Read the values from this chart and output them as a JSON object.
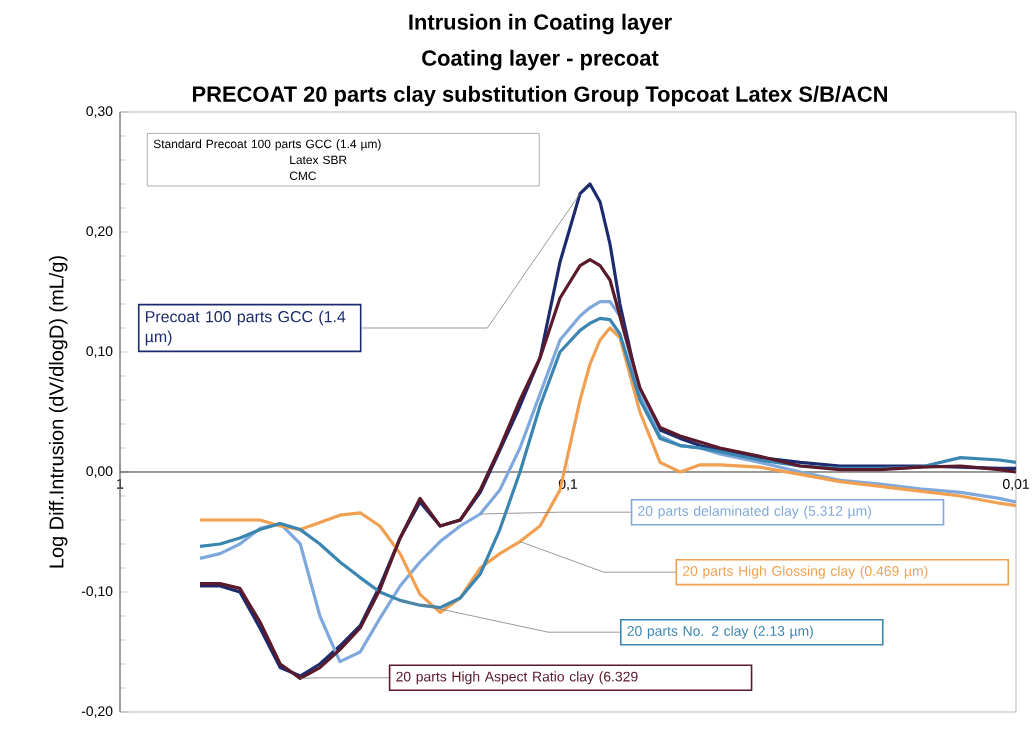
{
  "chart_data": {
    "type": "line",
    "title": "Intrusion in Coating layer",
    "subtitle": "Coating layer - precoat",
    "ylabel": "Log Diff.Intrusion (dV/dlogD) (mL/g)",
    "annotations": [
      "PRECOAT 20 parts clay substitution Group   Topcoat Latex S/B/ACN",
      "Standard Precoat  100 parts GCC (1.4 µm)",
      "Latex SBR",
      "CMC"
    ],
    "log": "x",
    "xlim": [
      1,
      0.01
    ],
    "xticks": [
      {
        "value": 1,
        "label": "1"
      },
      {
        "value": 0.1,
        "label": "0,1"
      },
      {
        "value": 0.01,
        "label": "0,01"
      }
    ],
    "ylim": [
      -0.2,
      0.3
    ],
    "yticks": [
      {
        "value": -0.2,
        "label": "-0,20"
      },
      {
        "value": -0.1,
        "label": "-0,10"
      },
      {
        "value": 0,
        "label": "0,00"
      },
      {
        "value": 0.1,
        "label": "0,10"
      },
      {
        "value": 0.2,
        "label": "0,20"
      },
      {
        "value": 0.3,
        "label": "0,30"
      }
    ],
    "x": [
      0.663,
      0.598,
      0.54,
      0.487,
      0.439,
      0.396,
      0.358,
      0.323,
      0.291,
      0.263,
      0.237,
      0.214,
      0.193,
      0.174,
      0.157,
      0.142,
      0.128,
      0.1155,
      0.1042,
      0.094,
      0.0893,
      0.0848,
      0.0806,
      0.0766,
      0.0691,
      0.0623,
      0.0562,
      0.0507,
      0.0458,
      0.0373,
      0.0303,
      0.0247,
      0.0201,
      0.0164,
      0.0133,
      0.0109,
      0.01
    ],
    "series": [
      {
        "name": "Precoat 100 parts GCC (1.4 µm)",
        "color": "#1c2a6e",
        "values": [
          -0.095,
          -0.095,
          -0.1,
          -0.13,
          -0.163,
          -0.17,
          -0.16,
          -0.145,
          -0.128,
          -0.095,
          -0.055,
          -0.025,
          -0.045,
          -0.04,
          -0.017,
          0.018,
          0.055,
          0.095,
          0.175,
          0.232,
          0.24,
          0.225,
          0.19,
          0.14,
          0.065,
          0.035,
          0.028,
          0.022,
          0.018,
          0.012,
          0.008,
          0.005,
          0.005,
          0.005,
          0.004,
          0.003,
          0.003
        ]
      },
      {
        "name": "20 parts delaminated clay (5.312 µm)",
        "color": "#7fa8dc",
        "values": [
          -0.072,
          -0.068,
          -0.06,
          -0.047,
          -0.043,
          -0.06,
          -0.12,
          -0.158,
          -0.15,
          -0.122,
          -0.095,
          -0.075,
          -0.058,
          -0.045,
          -0.035,
          -0.015,
          0.02,
          0.065,
          0.11,
          0.13,
          0.137,
          0.142,
          0.142,
          0.13,
          0.065,
          0.03,
          0.022,
          0.02,
          0.015,
          0.008,
          0.0,
          -0.007,
          -0.01,
          -0.014,
          -0.017,
          -0.022,
          -0.025
        ]
      },
      {
        "name": "20 parts High Glossing clay (0.469 µm)",
        "color": "#f0a050",
        "values": [
          -0.04,
          -0.04,
          -0.04,
          -0.04,
          -0.045,
          -0.048,
          -0.042,
          -0.036,
          -0.034,
          -0.045,
          -0.068,
          -0.102,
          -0.117,
          -0.105,
          -0.08,
          -0.068,
          -0.058,
          -0.045,
          -0.015,
          0.06,
          0.09,
          0.11,
          0.12,
          0.112,
          0.05,
          0.008,
          0.0,
          0.006,
          0.006,
          0.004,
          -0.002,
          -0.008,
          -0.012,
          -0.016,
          -0.02,
          -0.026,
          -0.028
        ]
      },
      {
        "name": "20 parts No. 2 clay (2.13 µm)",
        "color": "#3a86b0",
        "values": [
          -0.062,
          -0.06,
          -0.055,
          -0.048,
          -0.043,
          -0.048,
          -0.06,
          -0.075,
          -0.088,
          -0.1,
          -0.107,
          -0.111,
          -0.113,
          -0.105,
          -0.085,
          -0.048,
          0.0,
          0.055,
          0.1,
          0.118,
          0.124,
          0.128,
          0.127,
          0.115,
          0.06,
          0.028,
          0.022,
          0.02,
          0.017,
          0.01,
          0.005,
          0.003,
          0.003,
          0.004,
          0.012,
          0.01,
          0.008
        ]
      },
      {
        "name": "20 parts High Aspect Ratio clay (6.329",
        "color": "#5a1a2a",
        "values": [
          -0.093,
          -0.093,
          -0.097,
          -0.125,
          -0.16,
          -0.172,
          -0.163,
          -0.148,
          -0.13,
          -0.098,
          -0.055,
          -0.022,
          -0.045,
          -0.04,
          -0.015,
          0.02,
          0.06,
          0.095,
          0.145,
          0.172,
          0.177,
          0.172,
          0.16,
          0.13,
          0.07,
          0.037,
          0.03,
          0.025,
          0.02,
          0.013,
          0.005,
          0.002,
          0.002,
          0.004,
          0.005,
          0.002,
          0.0
        ]
      }
    ]
  }
}
